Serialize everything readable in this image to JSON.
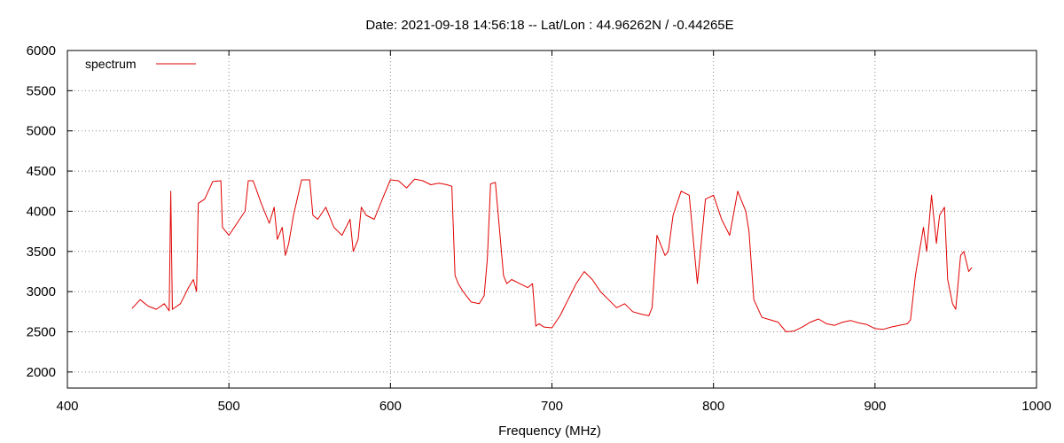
{
  "chart_data": {
    "type": "line",
    "title": "Date: 2021-09-18 14:56:18  --  Lat/Lon : 44.96262N / -0.44265E",
    "xlabel": "Frequency (MHz)",
    "ylabel": "",
    "xlim": [
      400,
      1000
    ],
    "ylim": [
      1800,
      6000
    ],
    "xticks": [
      400,
      500,
      600,
      700,
      800,
      900,
      1000
    ],
    "yticks": [
      2000,
      2500,
      3000,
      3500,
      4000,
      4500,
      5000,
      5500,
      6000
    ],
    "grid": true,
    "legend": "top-left",
    "series": [
      {
        "name": "spectrum",
        "color": "#e00000",
        "x": [
          440,
          445,
          450,
          455,
          460,
          463,
          464,
          465,
          470,
          475,
          478,
          480,
          481,
          485,
          490,
          495,
          496,
          500,
          505,
          510,
          512,
          515,
          520,
          525,
          528,
          530,
          533,
          535,
          537,
          540,
          545,
          550,
          552,
          555,
          560,
          565,
          570,
          575,
          577,
          580,
          582,
          585,
          590,
          595,
          600,
          605,
          610,
          615,
          620,
          625,
          630,
          635,
          638,
          640,
          642,
          645,
          650,
          655,
          658,
          660,
          662,
          665,
          670,
          672,
          675,
          680,
          685,
          688,
          690,
          692,
          695,
          700,
          705,
          710,
          715,
          720,
          725,
          730,
          735,
          740,
          745,
          750,
          755,
          760,
          762,
          765,
          770,
          772,
          775,
          780,
          785,
          790,
          795,
          800,
          805,
          810,
          815,
          820,
          822,
          825,
          830,
          835,
          840,
          845,
          850,
          855,
          860,
          865,
          870,
          875,
          880,
          885,
          890,
          895,
          900,
          905,
          910,
          915,
          920,
          922,
          925,
          930,
          932,
          935,
          938,
          940,
          943,
          945,
          948,
          950,
          953,
          955,
          958,
          960
        ],
        "y": [
          2790,
          2900,
          2820,
          2780,
          2850,
          2760,
          4250,
          2780,
          2850,
          3050,
          3150,
          3000,
          4100,
          4150,
          4370,
          4380,
          3800,
          3700,
          3850,
          4000,
          4380,
          4380,
          4100,
          3850,
          4050,
          3650,
          3800,
          3450,
          3600,
          3950,
          4390,
          4390,
          3950,
          3900,
          4050,
          3800,
          3700,
          3900,
          3500,
          3650,
          4050,
          3950,
          3900,
          4150,
          4390,
          4380,
          4290,
          4400,
          4380,
          4330,
          4350,
          4330,
          4310,
          3200,
          3100,
          3000,
          2870,
          2850,
          2950,
          3400,
          4340,
          4360,
          3200,
          3100,
          3150,
          3100,
          3050,
          3100,
          2570,
          2600,
          2560,
          2550,
          2700,
          2900,
          3100,
          3250,
          3150,
          3000,
          2900,
          2800,
          2850,
          2750,
          2720,
          2700,
          2800,
          3700,
          3450,
          3500,
          3950,
          4250,
          4200,
          3100,
          4150,
          4200,
          3900,
          3700,
          4250,
          4000,
          3750,
          2900,
          2680,
          2650,
          2620,
          2500,
          2510,
          2560,
          2620,
          2660,
          2600,
          2580,
          2620,
          2640,
          2610,
          2590,
          2540,
          2530,
          2560,
          2580,
          2600,
          2650,
          3200,
          3800,
          3500,
          4200,
          3600,
          3950,
          4050,
          3150,
          2850,
          2780,
          3450,
          3500,
          3250,
          3300
        ]
      }
    ]
  }
}
